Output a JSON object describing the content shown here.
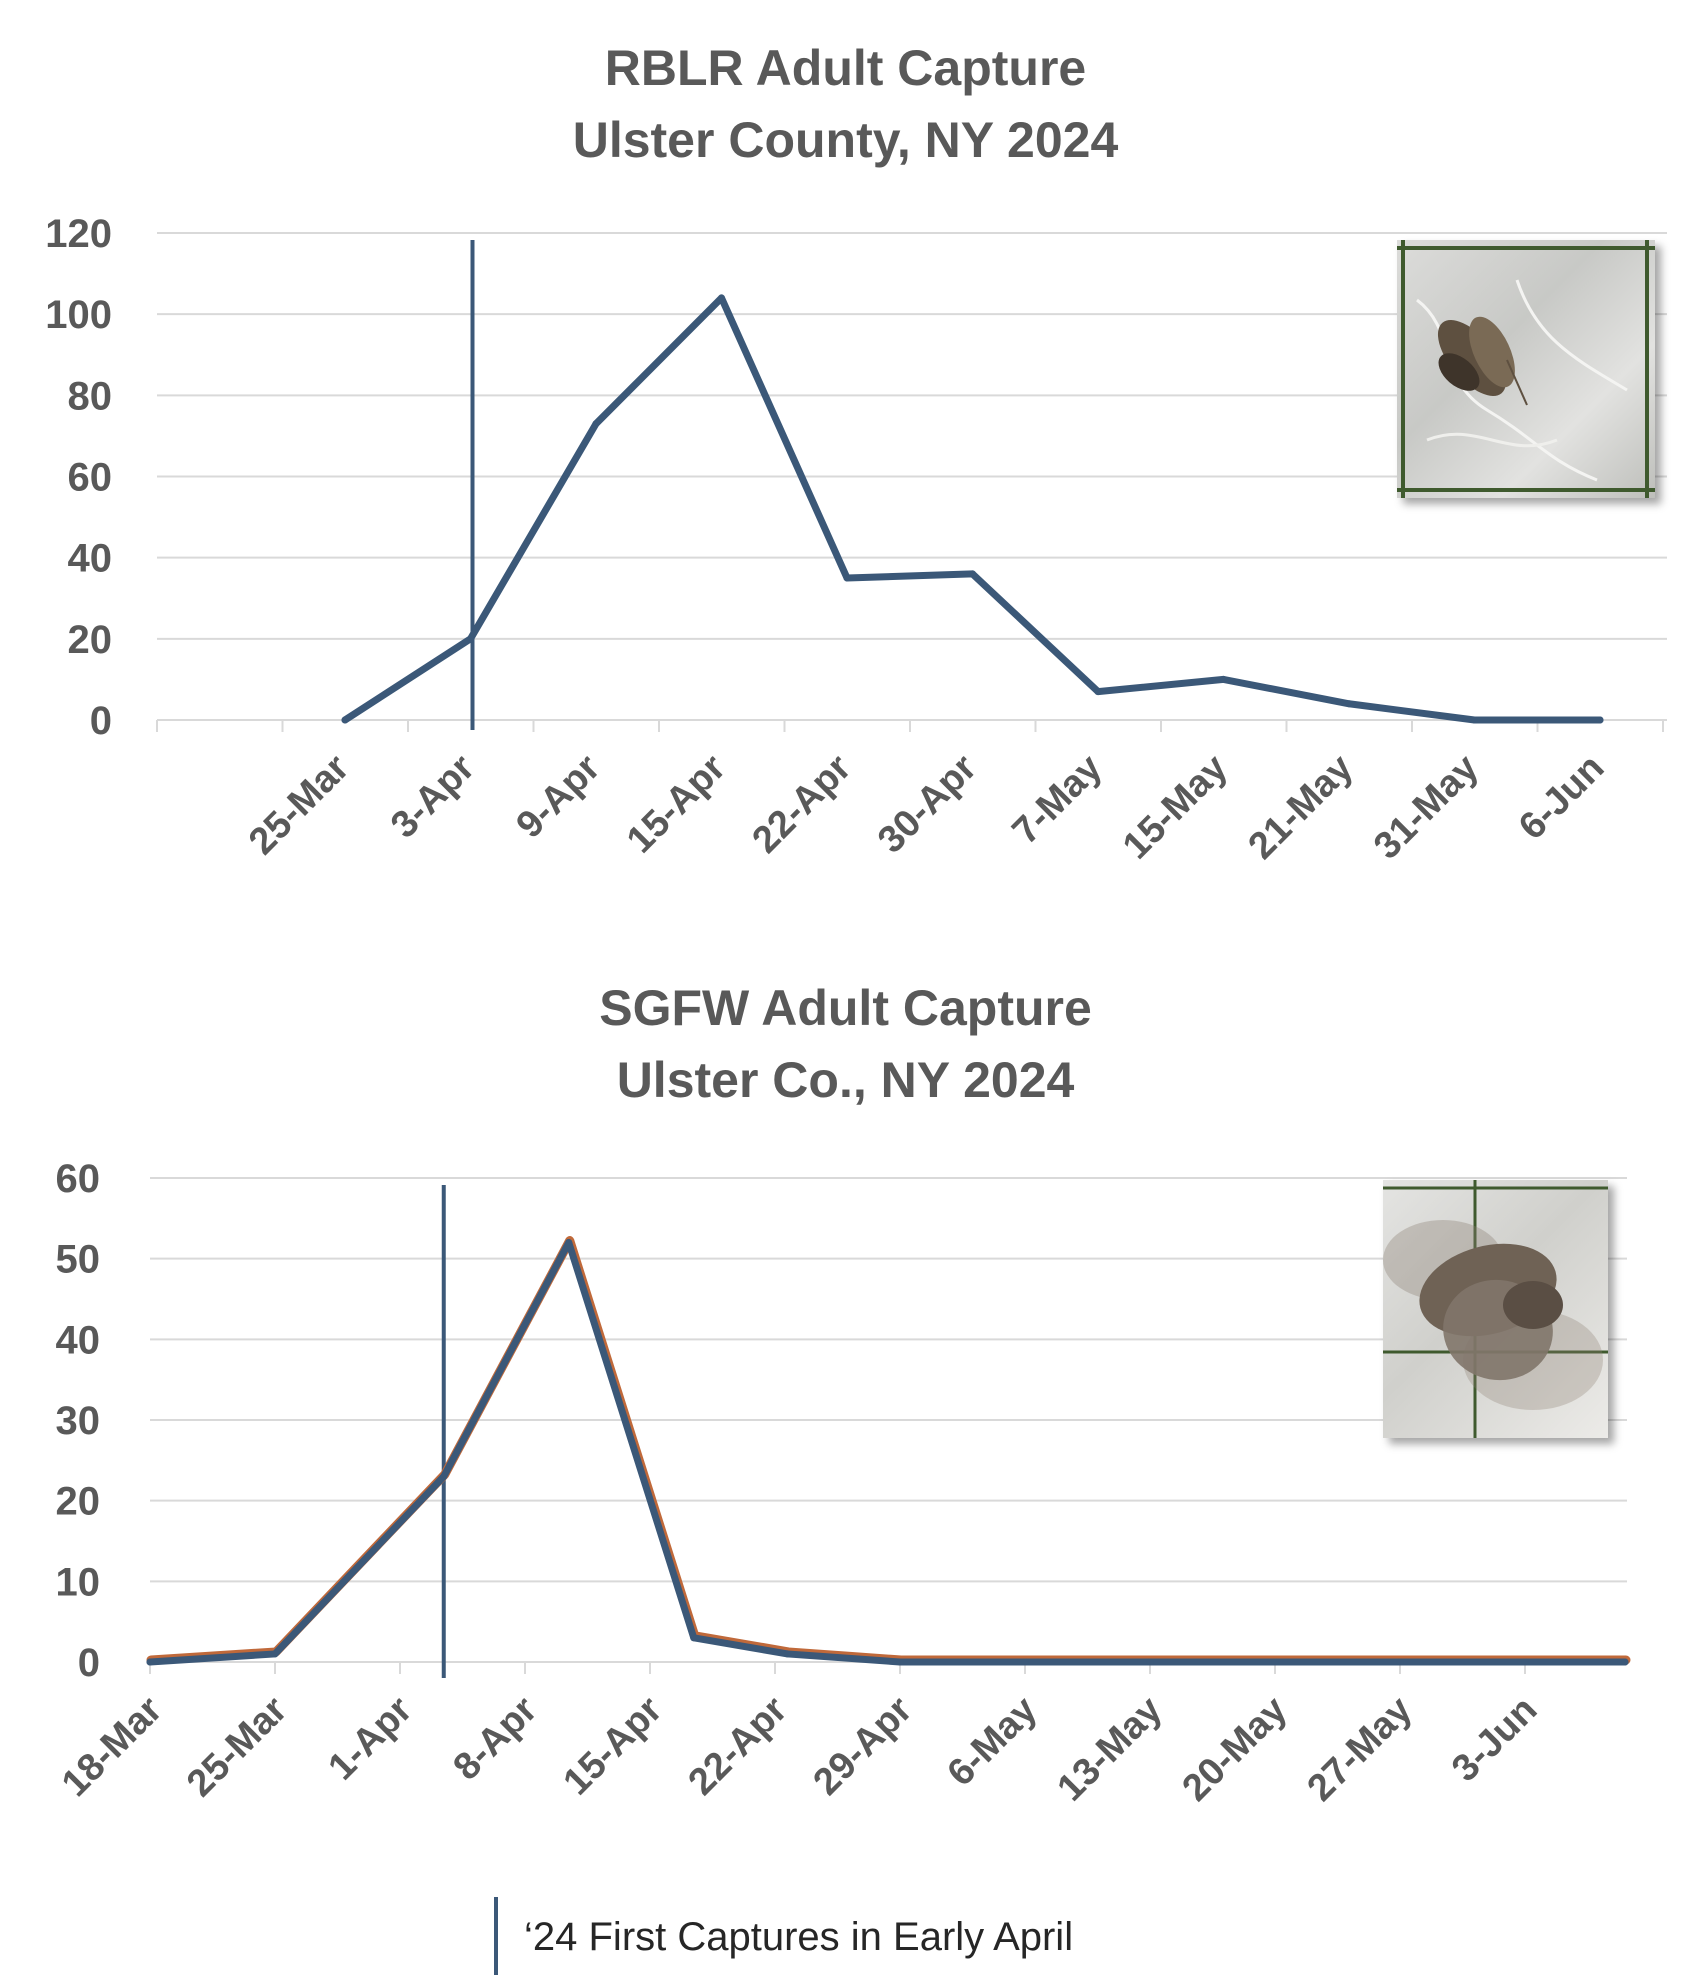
{
  "chart_data": [
    {
      "type": "line",
      "title": "RBLR  Adult Capture",
      "subtitle": "Ulster County, NY 2024",
      "categories": [
        "25-Mar",
        "3-Apr",
        "9-Apr",
        "15-Apr",
        "22-Apr",
        "30-Apr",
        "7-May",
        "15-May",
        "21-May",
        "31-May",
        "6-Jun"
      ],
      "series": [
        {
          "values": [
            0,
            20,
            73,
            104,
            35,
            36,
            7,
            10,
            4,
            0,
            0
          ]
        }
      ],
      "ylim": [
        0,
        120
      ],
      "yticks": [
        0,
        20,
        40,
        60,
        80,
        100,
        120
      ],
      "marker_line_category": "3-Apr",
      "grid": true,
      "line_color": "#3b5878"
    },
    {
      "type": "line",
      "title": "SGFW  Adult Capture",
      "subtitle": "Ulster Co., NY 2024",
      "categories": [
        "18-Mar",
        "25-Mar",
        "1-Apr",
        "8-Apr",
        "15-Apr",
        "22-Apr",
        "29-Apr",
        "6-May",
        "13-May",
        "20-May",
        "27-May",
        "3-Jun"
      ],
      "series": [
        {
          "x": [
            0,
            1,
            2.35,
            3.35,
            4.35,
            5.1,
            6,
            7,
            8,
            9,
            10,
            11,
            11.8
          ],
          "values": [
            0,
            1,
            23,
            52,
            3,
            1,
            0,
            0,
            0,
            0,
            0,
            0,
            0
          ]
        }
      ],
      "ylim": [
        0,
        60
      ],
      "yticks": [
        0,
        10,
        20,
        30,
        40,
        50,
        60
      ],
      "marker_line_x": 2.35,
      "grid": true,
      "line_color": "#3b5878",
      "shadow_line_color": "#c0693a"
    }
  ],
  "legend": {
    "text": "‘24 First Captures in Early April"
  },
  "images": [
    {
      "name": "rblr-moth-photo"
    },
    {
      "name": "sgfw-moth-photo"
    }
  ]
}
